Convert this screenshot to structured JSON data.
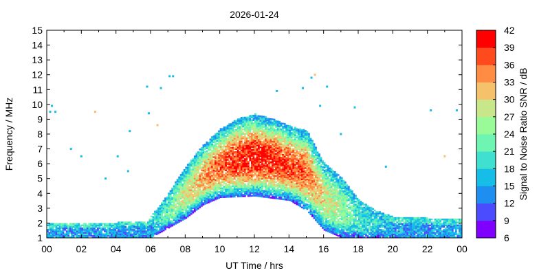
{
  "chart_data": {
    "type": "heatmap",
    "title": "2026-01-24",
    "xlabel": "UT Time / hrs",
    "ylabel": "Frequency / MHz",
    "xlim": [
      0,
      24
    ],
    "ylim": [
      1,
      15
    ],
    "x_ticks": [
      "00",
      "02",
      "04",
      "06",
      "08",
      "10",
      "12",
      "14",
      "16",
      "18",
      "20",
      "22",
      "00"
    ],
    "y_ticks": [
      "1",
      "2",
      "3",
      "4",
      "5",
      "6",
      "7",
      "8",
      "9",
      "10",
      "11",
      "12",
      "13",
      "14",
      "15"
    ],
    "grid": false,
    "colorbar": {
      "label": "Signal to Noise Ratio SNR / dB",
      "range": [
        6,
        42
      ],
      "ticks": [
        "6",
        "9",
        "12",
        "15",
        "18",
        "21",
        "24",
        "27",
        "30",
        "33",
        "36",
        "39",
        "42"
      ],
      "colors": [
        "#7f00ff",
        "#4c4cff",
        "#1f8ef1",
        "#16bde6",
        "#40e0d0",
        "#6ef5b2",
        "#98fb98",
        "#c8e68a",
        "#f5c26b",
        "#ff8c42",
        "#ff4a1e",
        "#ff0000"
      ]
    },
    "upper_edge_mhz": [
      {
        "hour": 0,
        "freq": 2.0
      },
      {
        "hour": 2,
        "freq": 2.0
      },
      {
        "hour": 4,
        "freq": 2.0
      },
      {
        "hour": 5.8,
        "freq": 2.1
      },
      {
        "hour": 7,
        "freq": 4.0
      },
      {
        "hour": 8,
        "freq": 5.8
      },
      {
        "hour": 9,
        "freq": 7.2
      },
      {
        "hour": 10,
        "freq": 8.3
      },
      {
        "hour": 11,
        "freq": 9.0
      },
      {
        "hour": 12,
        "freq": 9.3
      },
      {
        "hour": 13,
        "freq": 9.0
      },
      {
        "hour": 14,
        "freq": 8.5
      },
      {
        "hour": 15,
        "freq": 8.2
      },
      {
        "hour": 16,
        "freq": 6.0
      },
      {
        "hour": 17,
        "freq": 5.0
      },
      {
        "hour": 18,
        "freq": 3.5
      },
      {
        "hour": 19,
        "freq": 2.8
      },
      {
        "hour": 20,
        "freq": 2.4
      },
      {
        "hour": 22,
        "freq": 2.3
      },
      {
        "hour": 24,
        "freq": 2.2
      }
    ],
    "lower_edge_mhz": [
      {
        "hour": 0,
        "freq": 1.0
      },
      {
        "hour": 6,
        "freq": 1.0
      },
      {
        "hour": 8,
        "freq": 2.3
      },
      {
        "hour": 9,
        "freq": 3.2
      },
      {
        "hour": 10,
        "freq": 3.7
      },
      {
        "hour": 12,
        "freq": 3.8
      },
      {
        "hour": 14,
        "freq": 3.5
      },
      {
        "hour": 15,
        "freq": 2.8
      },
      {
        "hour": 16,
        "freq": 1.5
      },
      {
        "hour": 17,
        "freq": 1.0
      },
      {
        "hour": 24,
        "freq": 1.0
      }
    ],
    "sporadic_points": [
      {
        "hour": 0.2,
        "freq": 9.5
      },
      {
        "hour": 0.3,
        "freq": 9.9
      },
      {
        "hour": 0.5,
        "freq": 9.5
      },
      {
        "hour": 1.4,
        "freq": 7.0
      },
      {
        "hour": 2.0,
        "freq": 6.5
      },
      {
        "hour": 2.8,
        "freq": 9.5
      },
      {
        "hour": 3.4,
        "freq": 5.0
      },
      {
        "hour": 4.1,
        "freq": 6.5
      },
      {
        "hour": 4.7,
        "freq": 5.5
      },
      {
        "hour": 4.8,
        "freq": 8.2
      },
      {
        "hour": 5.8,
        "freq": 11.2
      },
      {
        "hour": 5.9,
        "freq": 9.4
      },
      {
        "hour": 6.4,
        "freq": 8.6
      },
      {
        "hour": 6.6,
        "freq": 11.1
      },
      {
        "hour": 7.1,
        "freq": 11.9
      },
      {
        "hour": 7.3,
        "freq": 11.9
      },
      {
        "hour": 13.3,
        "freq": 10.9
      },
      {
        "hour": 14.8,
        "freq": 11.1
      },
      {
        "hour": 15.3,
        "freq": 11.8
      },
      {
        "hour": 15.5,
        "freq": 12.0
      },
      {
        "hour": 15.8,
        "freq": 9.9
      },
      {
        "hour": 16.2,
        "freq": 11.2
      },
      {
        "hour": 17.0,
        "freq": 8.0
      },
      {
        "hour": 17.8,
        "freq": 9.8
      },
      {
        "hour": 19.6,
        "freq": 5.8
      },
      {
        "hour": 22.2,
        "freq": 9.6
      },
      {
        "hour": 23.0,
        "freq": 6.5
      },
      {
        "hour": 23.7,
        "freq": 9.6
      }
    ]
  }
}
